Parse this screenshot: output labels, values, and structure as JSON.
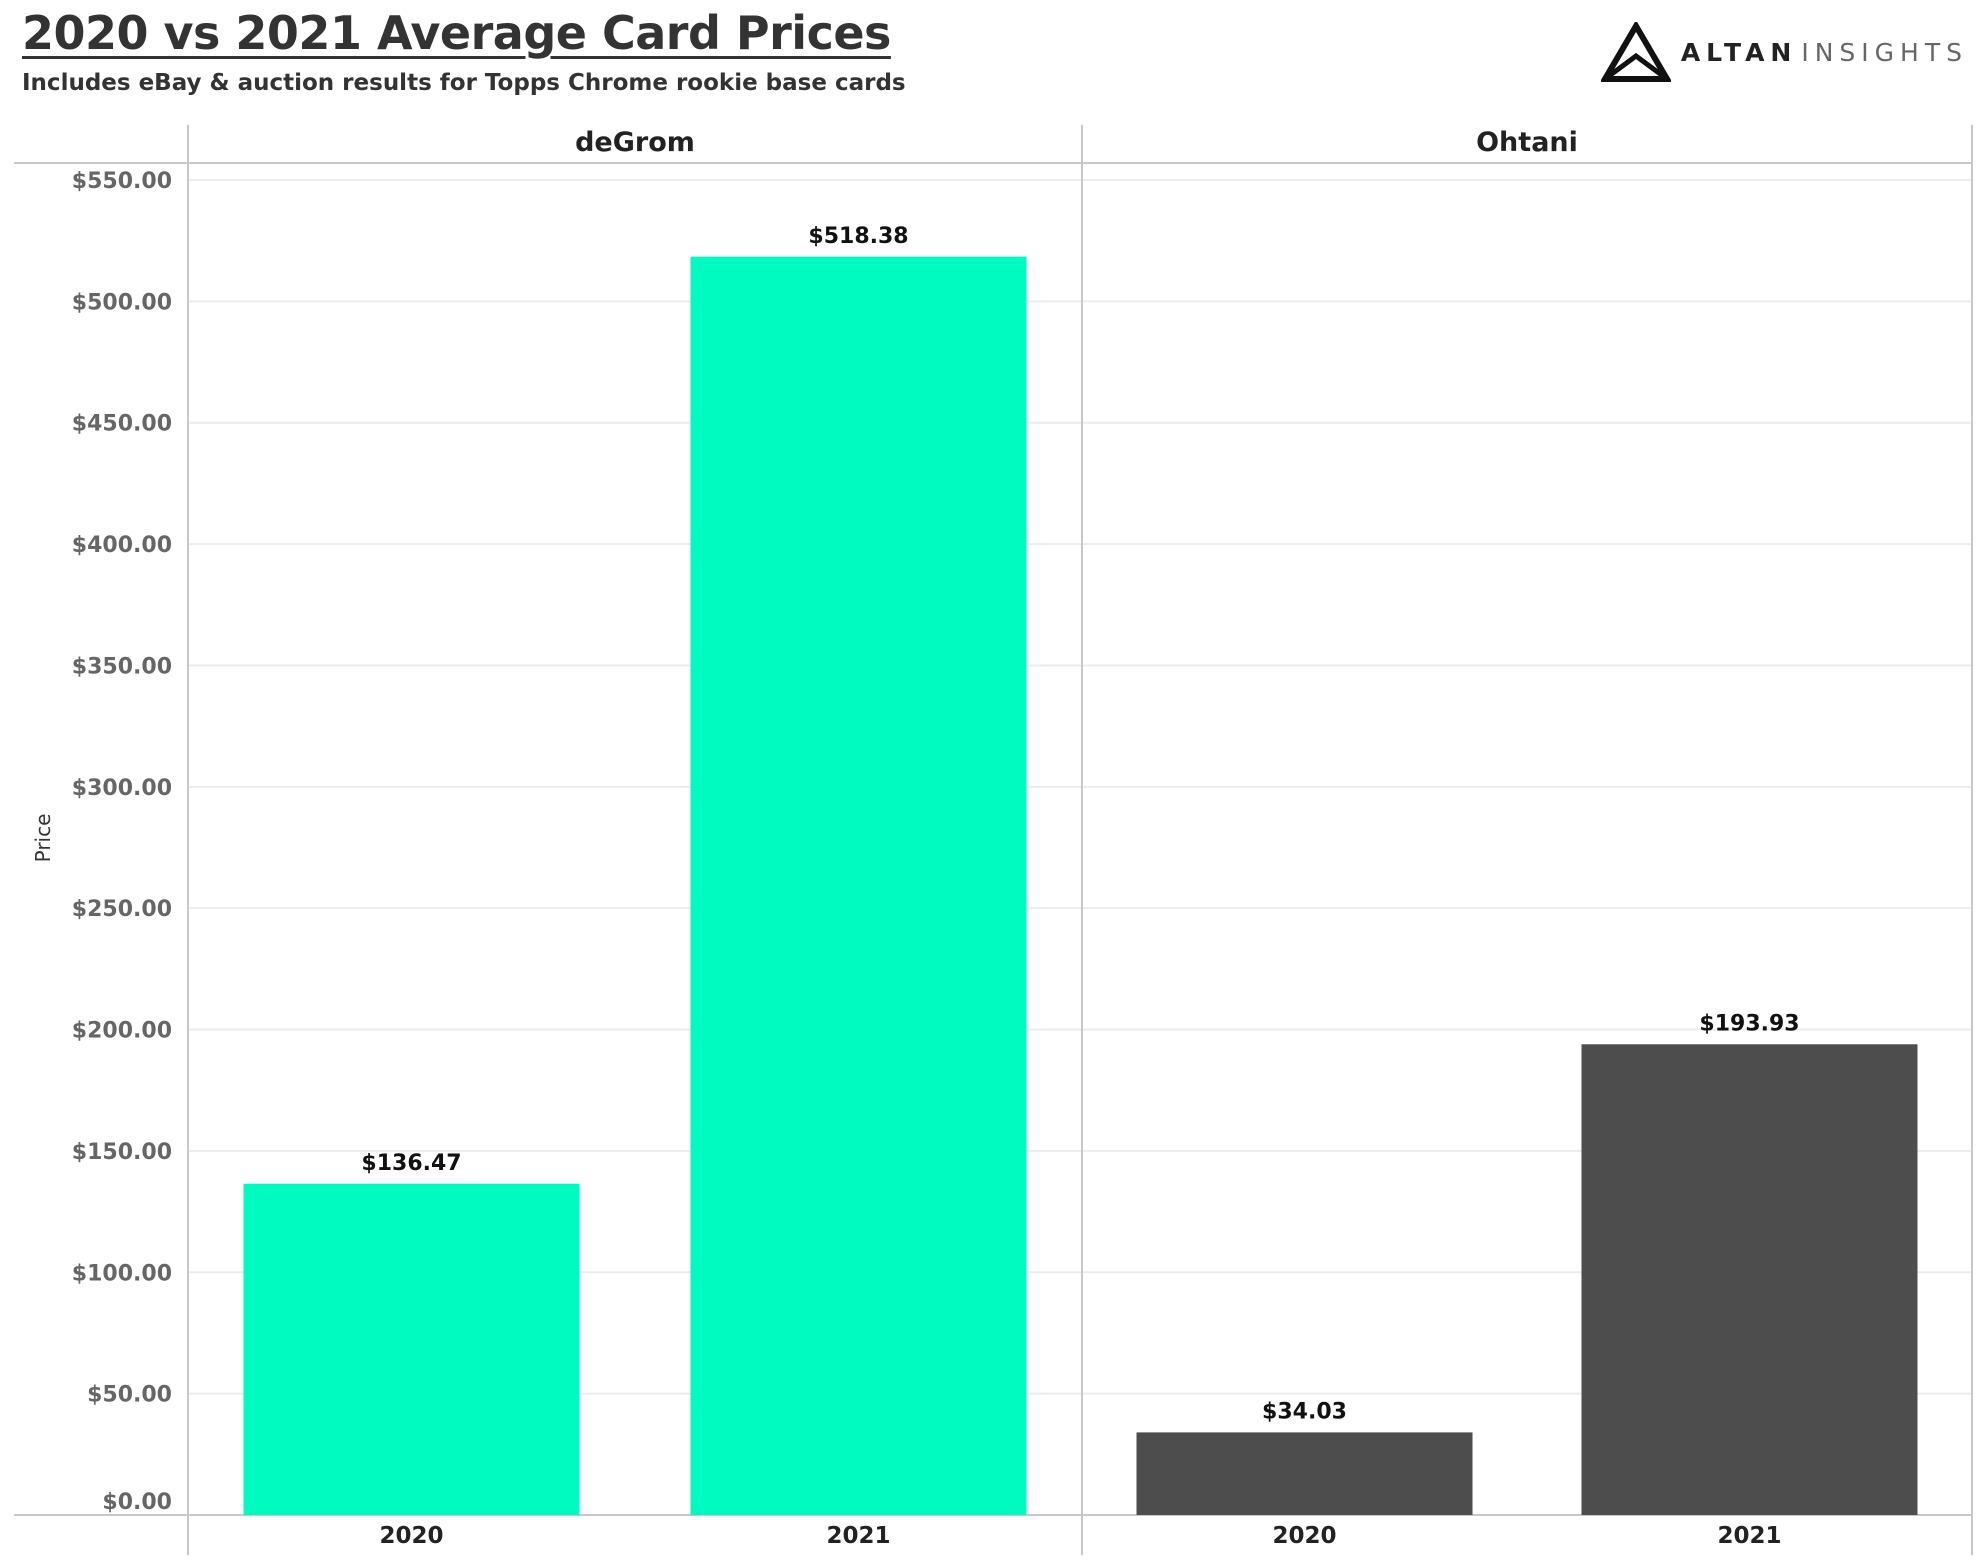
{
  "header": {
    "title": "2020 vs 2021 Average Card Prices",
    "subtitle": "Includes eBay & auction results for Topps Chrome rookie base cards"
  },
  "brand": {
    "name_part1": "ALTAN",
    "name_part2": "INSIGHTS",
    "logo_icon": "triangle-logo-icon"
  },
  "chart_data": {
    "type": "bar",
    "title": "2020 vs 2021 Average Card Prices",
    "subtitle": "Includes eBay & auction results for Topps Chrome rookie base cards",
    "ylabel": "Price",
    "xlabel": "",
    "ylim": [
      0,
      550
    ],
    "yticks": [
      0,
      50,
      100,
      150,
      200,
      250,
      300,
      350,
      400,
      450,
      500,
      550
    ],
    "ytick_labels": [
      "$0.00",
      "$50.00",
      "$100.00",
      "$150.00",
      "$200.00",
      "$250.00",
      "$300.00",
      "$350.00",
      "$400.00",
      "$450.00",
      "$500.00",
      "$550.00"
    ],
    "grid": true,
    "panels": [
      {
        "name": "deGrom",
        "color": "#00FBC0",
        "categories": [
          "2020",
          "2021"
        ],
        "values": [
          136.47,
          518.38
        ],
        "labels": [
          "$136.47",
          "$518.38"
        ]
      },
      {
        "name": "Ohtani",
        "color": "#4D4D4D",
        "categories": [
          "2020",
          "2021"
        ],
        "values": [
          34.03,
          193.93
        ],
        "labels": [
          "$34.03",
          "$193.93"
        ]
      }
    ]
  }
}
